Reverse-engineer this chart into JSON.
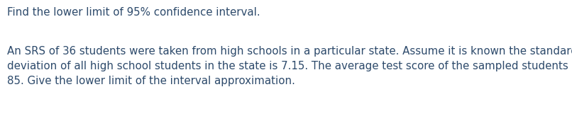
{
  "background_color": "#ffffff",
  "text_color": "#2d4a6b",
  "title_text": "Find the lower limit of 95% confidence interval.",
  "body_text_line1": "An SRS of 36 students were taken from high schools in a particular state. Assume it is known the standard",
  "body_text_line2": "deviation of all high school students in the state is 7.15. The average test score of the sampled students was",
  "body_text_line3": "85. Give the lower limit of the interval approximation.",
  "title_fontsize": 10.8,
  "body_fontsize": 10.8,
  "fig_width": 8.06,
  "fig_height": 1.64,
  "dpi": 100
}
